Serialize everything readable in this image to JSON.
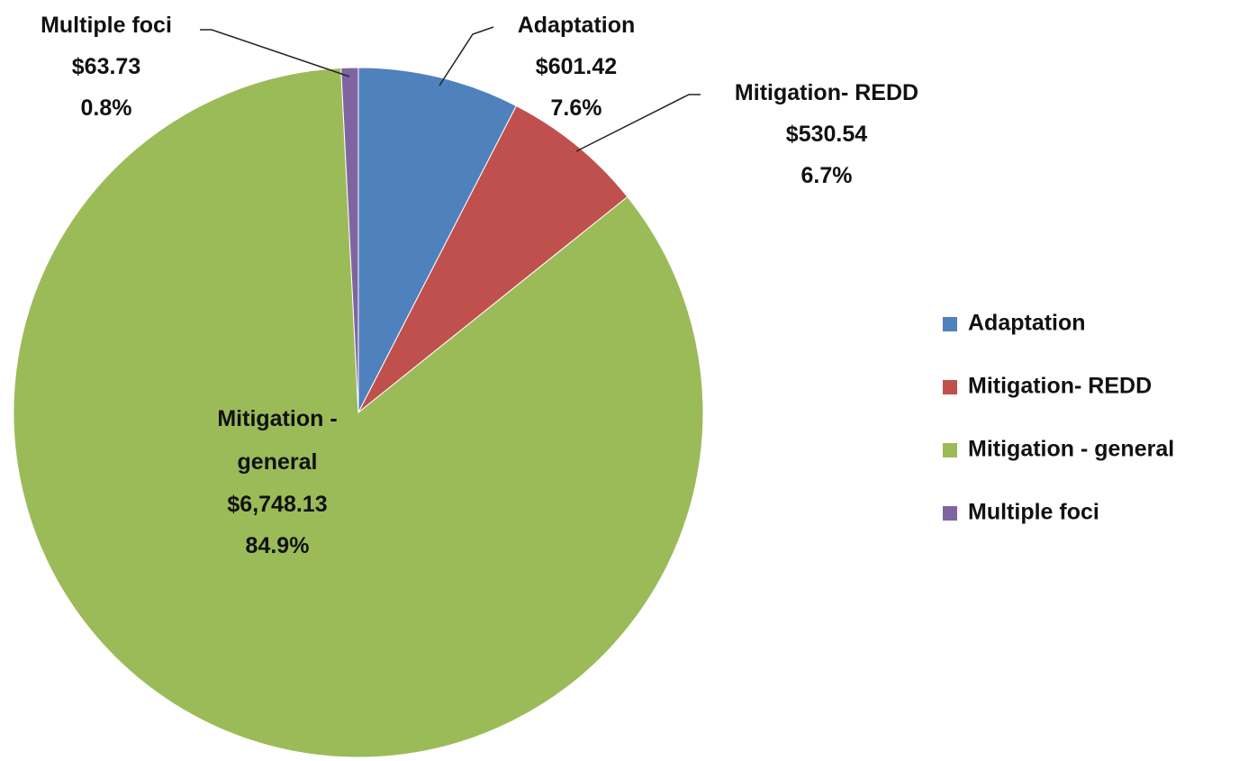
{
  "chart_data": {
    "type": "pie",
    "categories": [
      "Adaptation",
      "Mitigation- REDD",
      "Mitigation - general",
      "Multiple foci"
    ],
    "values": [
      601.42,
      530.54,
      6748.13,
      63.73
    ],
    "value_labels": [
      "$601.42",
      "$530.54",
      "$6,748.13",
      "$63.73"
    ],
    "percent_labels": [
      "7.6%",
      "6.7%",
      "84.9%",
      "0.8%"
    ],
    "colors": [
      "#4f81bd",
      "#c0504d",
      "#9bbb59",
      "#8064a2"
    ],
    "legend": "right"
  }
}
